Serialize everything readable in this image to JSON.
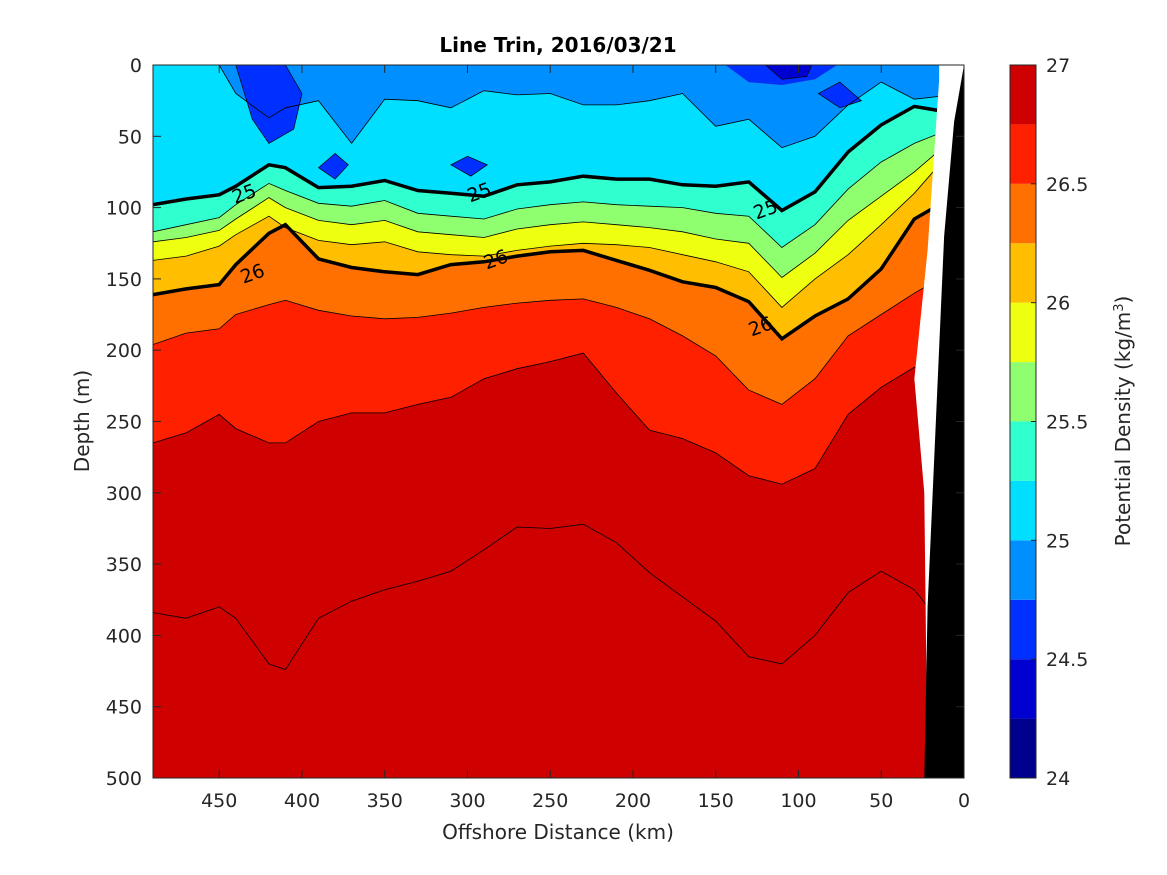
{
  "chart_data": {
    "type": "contour",
    "title": "Line Trin, 2016/03/21",
    "xlabel": "Offshore Distance (km)",
    "ylabel": "Depth (m)",
    "xlim": [
      490,
      0
    ],
    "x_reversed": true,
    "ylim": [
      0,
      500
    ],
    "y_reversed": true,
    "xticks": [
      "450",
      "400",
      "350",
      "300",
      "250",
      "200",
      "150",
      "100",
      "50",
      "0"
    ],
    "yticks": [
      "0",
      "50",
      "100",
      "150",
      "200",
      "250",
      "300",
      "350",
      "400",
      "450",
      "500"
    ],
    "colorbar": {
      "label_prefix": "Potential Density (kg/m",
      "label_sup": "3",
      "label_suffix": ")",
      "range": [
        24,
        27
      ],
      "ticks": [
        "24",
        "24.5",
        "25",
        "25.5",
        "26",
        "26.5",
        "27"
      ]
    },
    "contour_levels": [
      24.25,
      24.5,
      24.75,
      25,
      25.25,
      25.5,
      25.75,
      26,
      26.25,
      26.5,
      26.75
    ],
    "level_colors": [
      "#00008f",
      "#0000d0",
      "#0030ff",
      "#008fff",
      "#00dfff",
      "#30ffcf",
      "#8fff70",
      "#efff10",
      "#ffbf00",
      "#ff7000",
      "#ff2000",
      "#cf0000"
    ],
    "contour_labels": [
      {
        "text": "25",
        "x": 435,
        "y": 90
      },
      {
        "text": "25",
        "x": 293,
        "y": 89
      },
      {
        "text": "25",
        "x": 120,
        "y": 101
      },
      {
        "text": "26",
        "x": 430,
        "y": 146
      },
      {
        "text": "26",
        "x": 283,
        "y": 136
      },
      {
        "text": "26",
        "x": 123,
        "y": 183
      }
    ],
    "isopycnal_depths": {
      "x_km": [
        490,
        470,
        450,
        420,
        410,
        390,
        370,
        350,
        330,
        300,
        270,
        240,
        210,
        180,
        150,
        130,
        110,
        90,
        70,
        50,
        30,
        15,
        10
      ],
      "25.0": [
        97,
        93,
        91,
        69,
        72,
        87,
        85,
        81,
        88,
        93,
        83,
        78,
        81,
        80,
        85,
        82,
        101,
        89,
        61,
        42,
        29,
        30,
        37
      ],
      "26.0": [
        160,
        157,
        154,
        130,
        112,
        135,
        142,
        145,
        148,
        140,
        135,
        130,
        137,
        151,
        156,
        165,
        192,
        177,
        165,
        145,
        105,
        98,
        107
      ]
    },
    "bathymetry_label": "seafloor / land mask"
  }
}
